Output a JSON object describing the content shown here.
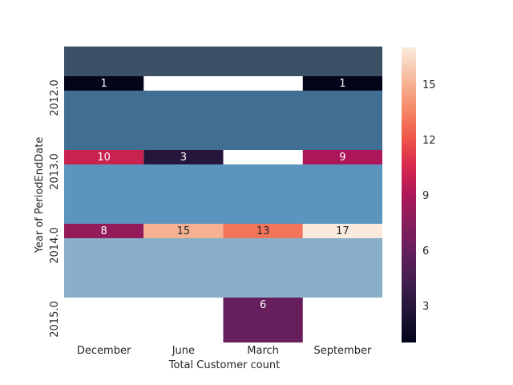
{
  "chart_data": {
    "type": "heatmap",
    "title": "",
    "xlabel": "Total Customer count",
    "ylabel": "Year of PeriodEndDate",
    "columns": [
      "December",
      "June",
      "March",
      "September"
    ],
    "rows": [
      "2012.0",
      "2013.0",
      "2014.0",
      "2015.0"
    ],
    "values": [
      [
        1,
        null,
        null,
        1
      ],
      [
        10,
        3,
        null,
        9
      ],
      [
        8,
        15,
        13,
        17
      ],
      [
        null,
        null,
        6,
        null
      ]
    ],
    "band_colors": [
      "#3d5166",
      "#416f93",
      "#5b95bd",
      "#8ab0c9"
    ],
    "colorbar": {
      "min": 1,
      "max": 17,
      "ticks": [
        "3",
        "6",
        "9",
        "12",
        "15"
      ],
      "colormap": "rocket"
    },
    "grid": false
  }
}
